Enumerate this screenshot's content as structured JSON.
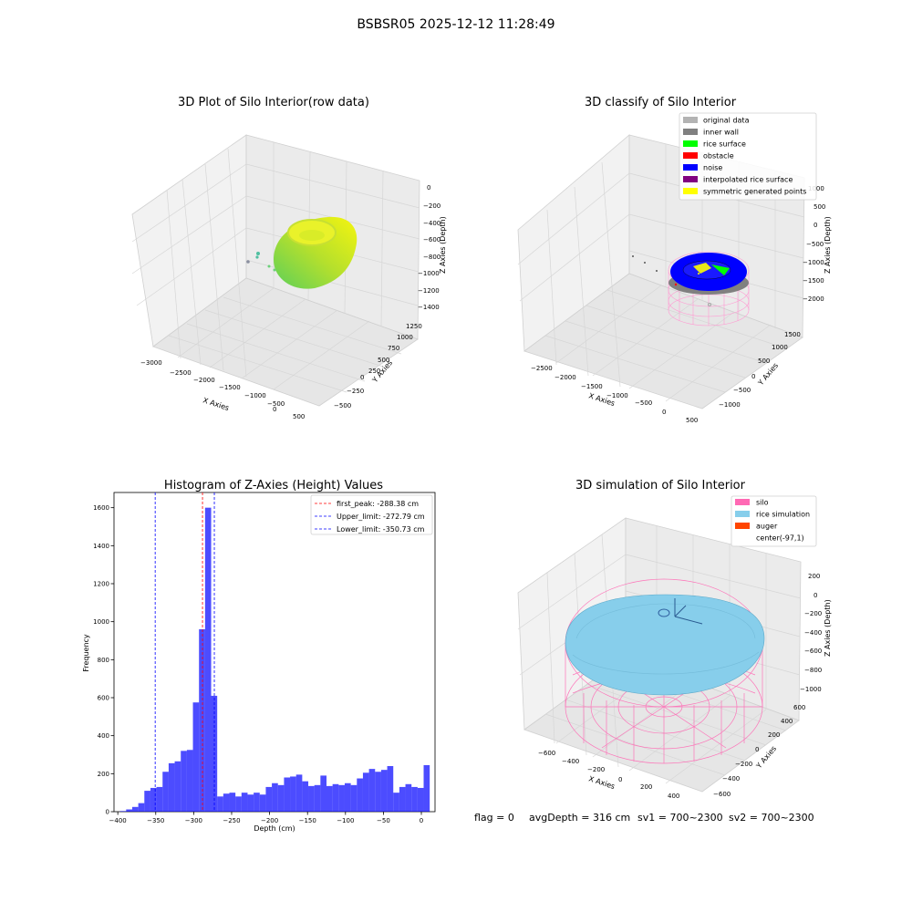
{
  "figure": {
    "title": "BSBSR05 2025-12-12 11:28:49",
    "status": {
      "flag": "flag = 0",
      "avg_depth": "avgDepth = 316 cm",
      "sv1": "sv1 = 700~2300",
      "sv2": "sv2 = 700~2300"
    }
  },
  "panels": {
    "raw": {
      "title": "3D Plot of Silo Interior(row data)",
      "xlabel": "X Axies",
      "ylabel": "Y Axies",
      "zlabel": "Z Axies (Depth)",
      "xticks": [
        "−3000",
        "−2500",
        "−2000",
        "−1500",
        "−1000",
        "−500",
        "0",
        "500"
      ],
      "yticks": [
        "−500",
        "−250",
        "0",
        "250",
        "500",
        "750",
        "1000",
        "1250"
      ],
      "zticks": [
        "0",
        "−200",
        "−400",
        "−600",
        "−800",
        "−1000",
        "−1200",
        "−1400"
      ]
    },
    "classify": {
      "title": "3D classify of Silo Interior",
      "xlabel": "X Axies",
      "ylabel": "Y Axies",
      "zlabel": "Z Axies (Depth)",
      "xticks": [
        "−2500",
        "−2000",
        "−1500",
        "−1000",
        "−500",
        "0",
        "500"
      ],
      "yticks": [
        "−1000",
        "−500",
        "0",
        "500",
        "1000",
        "1500"
      ],
      "zticks": [
        "1000",
        "500",
        "0",
        "−500",
        "−1000",
        "−1500",
        "−2000"
      ],
      "legend": [
        {
          "label": "original data",
          "color": "#b3b3b3"
        },
        {
          "label": "inner wall",
          "color": "#808080"
        },
        {
          "label": "rice surface",
          "color": "#00ff00"
        },
        {
          "label": "obstacle",
          "color": "#ff0000"
        },
        {
          "label": "noise",
          "color": "#0000ff"
        },
        {
          "label": "interpolated rice surface",
          "color": "#800080"
        },
        {
          "label": "symmetric generated points",
          "color": "#ffff00"
        }
      ]
    },
    "simulation": {
      "title": "3D simulation of Silo Interior",
      "xlabel": "X Axies",
      "ylabel": "Y Axies",
      "zlabel": "Z Axies (Depth)",
      "xticks": [
        "−600",
        "−400",
        "−200",
        "0",
        "200",
        "400"
      ],
      "yticks": [
        "−600",
        "−400",
        "−200",
        "0",
        "200",
        "400",
        "600"
      ],
      "zticks": [
        "200",
        "0",
        "−200",
        "−400",
        "−600",
        "−800",
        "−1000"
      ],
      "legend": [
        {
          "label": "silo",
          "color": "#ff69b4"
        },
        {
          "label": "rice simulation",
          "color": "#87ceeb"
        },
        {
          "label": "auger",
          "color": "#ff4500"
        },
        {
          "label": "center(-97,1)",
          "color": ""
        }
      ]
    }
  },
  "chart_data": {
    "type": "bar",
    "title": "Histogram of Z-Axies (Height) Values",
    "xlabel": "Depth (cm)",
    "ylabel": "Frequency",
    "xlim": [
      -405,
      18
    ],
    "ylim": [
      0,
      1680
    ],
    "xticks": [
      -400,
      -350,
      -300,
      -250,
      -200,
      -150,
      -100,
      -50,
      0
    ],
    "xtick_labels": [
      "−400",
      "−350",
      "−300",
      "−250",
      "−200",
      "−150",
      "−100",
      "−50",
      "0"
    ],
    "yticks": [
      0,
      200,
      400,
      600,
      800,
      1000,
      1200,
      1400,
      1600
    ],
    "bar_color": "#0000ff",
    "bar_alpha": 0.7,
    "bins": [
      {
        "x0": -397,
        "x1": -389,
        "v": 3
      },
      {
        "x0": -389,
        "x1": -381,
        "v": 12
      },
      {
        "x0": -381,
        "x1": -373,
        "v": 25
      },
      {
        "x0": -373,
        "x1": -365,
        "v": 45
      },
      {
        "x0": -365,
        "x1": -357,
        "v": 110
      },
      {
        "x0": -357,
        "x1": -349,
        "v": 125
      },
      {
        "x0": -349,
        "x1": -341,
        "v": 130
      },
      {
        "x0": -341,
        "x1": -333,
        "v": 210
      },
      {
        "x0": -333,
        "x1": -325,
        "v": 255
      },
      {
        "x0": -325,
        "x1": -317,
        "v": 265
      },
      {
        "x0": -317,
        "x1": -309,
        "v": 320
      },
      {
        "x0": -309,
        "x1": -301,
        "v": 325
      },
      {
        "x0": -301,
        "x1": -293,
        "v": 575
      },
      {
        "x0": -293,
        "x1": -285,
        "v": 960
      },
      {
        "x0": -285,
        "x1": -277,
        "v": 1600
      },
      {
        "x0": -277,
        "x1": -269,
        "v": 610
      },
      {
        "x0": -269,
        "x1": -261,
        "v": 80
      },
      {
        "x0": -261,
        "x1": -253,
        "v": 95
      },
      {
        "x0": -253,
        "x1": -245,
        "v": 100
      },
      {
        "x0": -245,
        "x1": -237,
        "v": 80
      },
      {
        "x0": -237,
        "x1": -229,
        "v": 100
      },
      {
        "x0": -229,
        "x1": -221,
        "v": 90
      },
      {
        "x0": -221,
        "x1": -213,
        "v": 100
      },
      {
        "x0": -213,
        "x1": -205,
        "v": 90
      },
      {
        "x0": -205,
        "x1": -197,
        "v": 130
      },
      {
        "x0": -197,
        "x1": -189,
        "v": 150
      },
      {
        "x0": -189,
        "x1": -181,
        "v": 140
      },
      {
        "x0": -181,
        "x1": -173,
        "v": 180
      },
      {
        "x0": -173,
        "x1": -165,
        "v": 185
      },
      {
        "x0": -165,
        "x1": -157,
        "v": 195
      },
      {
        "x0": -157,
        "x1": -149,
        "v": 160
      },
      {
        "x0": -149,
        "x1": -141,
        "v": 135
      },
      {
        "x0": -141,
        "x1": -133,
        "v": 140
      },
      {
        "x0": -133,
        "x1": -125,
        "v": 190
      },
      {
        "x0": -125,
        "x1": -117,
        "v": 135
      },
      {
        "x0": -117,
        "x1": -109,
        "v": 145
      },
      {
        "x0": -109,
        "x1": -101,
        "v": 140
      },
      {
        "x0": -101,
        "x1": -93,
        "v": 150
      },
      {
        "x0": -93,
        "x1": -85,
        "v": 140
      },
      {
        "x0": -85,
        "x1": -77,
        "v": 175
      },
      {
        "x0": -77,
        "x1": -69,
        "v": 205
      },
      {
        "x0": -69,
        "x1": -61,
        "v": 225
      },
      {
        "x0": -61,
        "x1": -53,
        "v": 210
      },
      {
        "x0": -53,
        "x1": -45,
        "v": 220
      },
      {
        "x0": -45,
        "x1": -37,
        "v": 240
      },
      {
        "x0": -37,
        "x1": -29,
        "v": 100
      },
      {
        "x0": -29,
        "x1": -21,
        "v": 130
      },
      {
        "x0": -21,
        "x1": -13,
        "v": 145
      },
      {
        "x0": -13,
        "x1": -5,
        "v": 130
      },
      {
        "x0": -5,
        "x1": 3,
        "v": 125
      },
      {
        "x0": 3,
        "x1": 11,
        "v": 245
      }
    ],
    "vlines": [
      {
        "x": -288.38,
        "color": "#ff0000",
        "label": "first_peak: -288.38 cm"
      },
      {
        "x": -272.79,
        "color": "#0000ff",
        "label": "Upper_limit: -272.79 cm"
      },
      {
        "x": -350.73,
        "color": "#0000ff",
        "label": "Lower_limit: -350.73 cm"
      }
    ]
  }
}
